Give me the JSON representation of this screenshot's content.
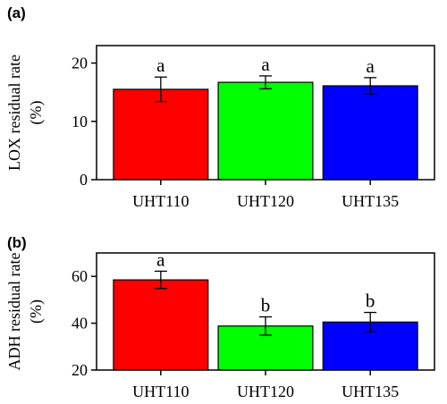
{
  "chart_data": [
    {
      "type": "bar",
      "panel_label": "(a)",
      "ylabel_line1": "LOX residual rate",
      "ylabel_line2": "(%)",
      "categories": [
        "UHT110",
        "UHT120",
        "UHT135"
      ],
      "values": [
        15.5,
        16.7,
        16.1
      ],
      "errors": [
        2.1,
        1.1,
        1.4
      ],
      "letters": [
        "a",
        "a",
        "a"
      ],
      "colors": [
        "#ff0000",
        "#00ff00",
        "#0000ff"
      ],
      "ylim": [
        0,
        23
      ],
      "yticks": [
        0,
        10,
        20
      ],
      "grid": false
    },
    {
      "type": "bar",
      "panel_label": "(b)",
      "ylabel_line1": "ADH residual rate",
      "ylabel_line2": "(%)",
      "categories": [
        "UHT110",
        "UHT120",
        "UHT135"
      ],
      "values": [
        58.5,
        38.8,
        40.5
      ],
      "errors": [
        3.7,
        3.9,
        4.1
      ],
      "letters": [
        "a",
        "b",
        "b"
      ],
      "colors": [
        "#ff0000",
        "#00ff00",
        "#0000ff"
      ],
      "ylim": [
        20,
        70
      ],
      "yticks": [
        20,
        40,
        60
      ],
      "grid": false
    }
  ]
}
